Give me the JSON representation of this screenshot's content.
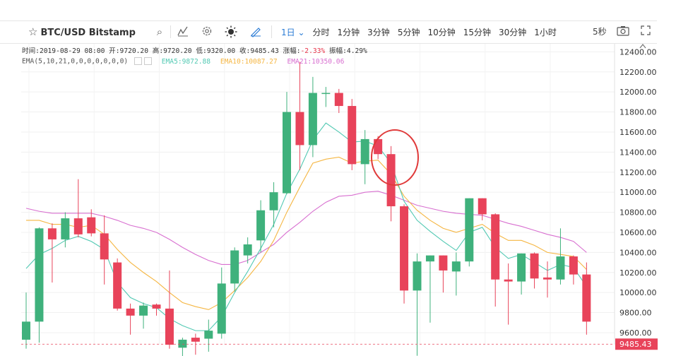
{
  "toolbar": {
    "symbol": "BTC/USD Bitstamp",
    "intervals": [
      "1日",
      "分时",
      "1分钟",
      "3分钟",
      "5分钟",
      "10分钟",
      "15分钟",
      "30分钟",
      "1小时"
    ],
    "active_interval": "1日",
    "seconds_label": "5秒",
    "icons": [
      "star-icon",
      "search-icon",
      "indicators-icon",
      "settings-icon",
      "theme-icon",
      "draw-icon",
      "camera-icon",
      "fullscreen-icon"
    ]
  },
  "info": {
    "time": "时间:2019-08-29 08:00",
    "open": "开:9720.20",
    "high": "高:9720.20",
    "low": "低:9320.00",
    "close": "收:9485.43",
    "change_label": "涨幅:",
    "change_value": "-2.33%",
    "amplitude": "振幅:4.29%",
    "ema_params": "EMA(5,10,21,0,0,0,0,0,0,0)",
    "ema5": "EMA5:9872.88",
    "ema10": "EMA10:10087.27",
    "ema21": "EMA21:10350.06"
  },
  "chart_data": {
    "type": "candlestick",
    "ylim": [
      9480,
      12480
    ],
    "yticks": [
      "12400.00",
      "12200.00",
      "12000.00",
      "11800.00",
      "11600.00",
      "11400.00",
      "11200.00",
      "11000.00",
      "10800.00",
      "10600.00",
      "10400.00",
      "10200.00",
      "10000.00",
      "9800.00",
      "9600.00"
    ],
    "last_price": "9485.43",
    "colors": {
      "up": "#3fb17c",
      "down": "#e8435a",
      "ema5": "#52c9b3",
      "ema10": "#f5b642",
      "ema21": "#d86fd0",
      "circle": "#e03a3a"
    },
    "candles": [
      {
        "o": 9530,
        "h": 10000,
        "l": 9440,
        "c": 9710
      },
      {
        "o": 9710,
        "h": 10650,
        "l": 9500,
        "c": 10640
      },
      {
        "o": 10640,
        "h": 10690,
        "l": 10100,
        "c": 10530
      },
      {
        "o": 10530,
        "h": 10800,
        "l": 10450,
        "c": 10740
      },
      {
        "o": 10740,
        "h": 11130,
        "l": 10550,
        "c": 10580
      },
      {
        "o": 10750,
        "h": 10830,
        "l": 10560,
        "c": 10590
      },
      {
        "o": 10590,
        "h": 10770,
        "l": 10080,
        "c": 10330
      },
      {
        "o": 10300,
        "h": 10340,
        "l": 9820,
        "c": 9840
      },
      {
        "o": 9840,
        "h": 9890,
        "l": 9580,
        "c": 9770
      },
      {
        "o": 9770,
        "h": 9900,
        "l": 9640,
        "c": 9870
      },
      {
        "o": 9880,
        "h": 9890,
        "l": 9770,
        "c": 9840
      },
      {
        "o": 9840,
        "h": 10220,
        "l": 9440,
        "c": 9480
      },
      {
        "o": 9450,
        "h": 9550,
        "l": 9360,
        "c": 9530
      },
      {
        "o": 9550,
        "h": 9590,
        "l": 9380,
        "c": 9510
      },
      {
        "o": 9540,
        "h": 9730,
        "l": 9410,
        "c": 9620
      },
      {
        "o": 9590,
        "h": 10250,
        "l": 9540,
        "c": 10090
      },
      {
        "o": 10090,
        "h": 10450,
        "l": 10010,
        "c": 10420
      },
      {
        "o": 10370,
        "h": 10550,
        "l": 10290,
        "c": 10480
      },
      {
        "o": 10520,
        "h": 10920,
        "l": 10400,
        "c": 10820
      },
      {
        "o": 10820,
        "h": 11100,
        "l": 10650,
        "c": 11000
      },
      {
        "o": 10990,
        "h": 12000,
        "l": 10980,
        "c": 11800
      },
      {
        "o": 11800,
        "h": 12300,
        "l": 11220,
        "c": 11470
      },
      {
        "o": 11470,
        "h": 12150,
        "l": 11350,
        "c": 11990
      },
      {
        "o": 11980,
        "h": 12050,
        "l": 11850,
        "c": 11990
      },
      {
        "o": 11990,
        "h": 12030,
        "l": 11790,
        "c": 11860
      },
      {
        "o": 11860,
        "h": 11930,
        "l": 11220,
        "c": 11280
      },
      {
        "o": 11280,
        "h": 11620,
        "l": 11080,
        "c": 11530
      },
      {
        "o": 11530,
        "h": 11560,
        "l": 11330,
        "c": 11380
      },
      {
        "o": 11380,
        "h": 11460,
        "l": 10710,
        "c": 10860
      },
      {
        "o": 10860,
        "h": 10880,
        "l": 9890,
        "c": 10020
      },
      {
        "o": 10020,
        "h": 10390,
        "l": 9370,
        "c": 10310
      },
      {
        "o": 10310,
        "h": 10370,
        "l": 9700,
        "c": 10370
      },
      {
        "o": 10370,
        "h": 10370,
        "l": 10000,
        "c": 10220
      },
      {
        "o": 10210,
        "h": 10400,
        "l": 9970,
        "c": 10310
      },
      {
        "o": 10310,
        "h": 10940,
        "l": 10260,
        "c": 10940
      },
      {
        "o": 10940,
        "h": 10940,
        "l": 10720,
        "c": 10780
      },
      {
        "o": 10780,
        "h": 10790,
        "l": 9860,
        "c": 10130
      },
      {
        "o": 10130,
        "h": 10290,
        "l": 9680,
        "c": 10110
      },
      {
        "o": 10110,
        "h": 10390,
        "l": 9980,
        "c": 10390
      },
      {
        "o": 10390,
        "h": 10400,
        "l": 10040,
        "c": 10140
      },
      {
        "o": 10150,
        "h": 10310,
        "l": 9950,
        "c": 10130
      },
      {
        "o": 10130,
        "h": 10640,
        "l": 10080,
        "c": 10360
      },
      {
        "o": 10360,
        "h": 10370,
        "l": 10080,
        "c": 10180
      },
      {
        "o": 10180,
        "h": 10300,
        "l": 9580,
        "c": 9710
      }
    ],
    "ema5": [
      10240,
      10380,
      10440,
      10520,
      10560,
      10510,
      10430,
      10100,
      9950,
      9890,
      9850,
      9740,
      9670,
      9620,
      9620,
      9760,
      10000,
      10210,
      10440,
      10680,
      10990,
      11230,
      11520,
      11690,
      11600,
      11500,
      11510,
      11460,
      11290,
      10910,
      10720,
      10610,
      10510,
      10420,
      10600,
      10650,
      10450,
      10340,
      10380,
      10300,
      10220,
      10280,
      10250,
      10060
    ],
    "ema10": [
      10720,
      10720,
      10680,
      10680,
      10650,
      10670,
      10580,
      10430,
      10300,
      10200,
      10110,
      10000,
      9900,
      9860,
      9830,
      9900,
      10020,
      10150,
      10310,
      10520,
      10800,
      11050,
      11290,
      11330,
      11350,
      11290,
      11310,
      11320,
      11180,
      10960,
      10820,
      10720,
      10640,
      10600,
      10640,
      10680,
      10590,
      10520,
      10520,
      10470,
      10400,
      10380,
      10360,
      10230
    ],
    "ema21": [
      10840,
      10810,
      10790,
      10790,
      10790,
      10790,
      10760,
      10720,
      10670,
      10640,
      10600,
      10530,
      10450,
      10380,
      10320,
      10280,
      10280,
      10320,
      10400,
      10480,
      10600,
      10700,
      10810,
      10900,
      10960,
      10970,
      11000,
      11010,
      10970,
      10920,
      10870,
      10840,
      10810,
      10790,
      10780,
      10770,
      10730,
      10690,
      10660,
      10620,
      10580,
      10550,
      10510,
      10400
    ]
  }
}
